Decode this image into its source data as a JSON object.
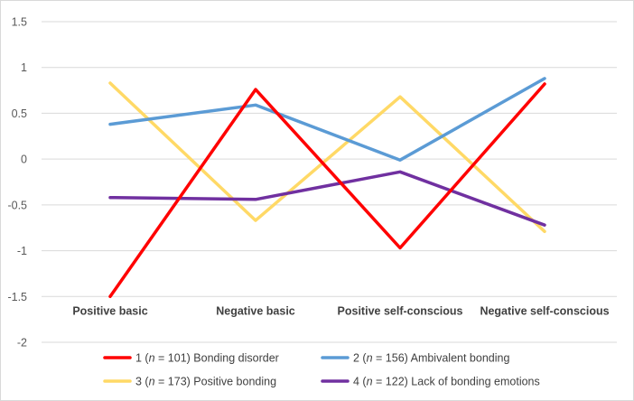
{
  "chart_data": {
    "type": "line",
    "title": "",
    "xlabel": "",
    "ylabel": "",
    "categories": [
      "Positive basic",
      "Negative basic",
      "Positive self-conscious",
      "Negative self-conscious"
    ],
    "ylim": [
      -2,
      1.5
    ],
    "yticks": [
      1.5,
      1,
      0.5,
      0,
      -0.5,
      -1,
      -1.5,
      -2
    ],
    "ytick_labels": [
      "1.5",
      "1",
      "0.5",
      "0",
      "-0.5",
      "-1",
      "-1.5",
      "-2"
    ],
    "grid": true,
    "legend_position": "bottom",
    "series": [
      {
        "id": "s1",
        "number": "1",
        "n_label": "n",
        "n_text": " = 101)",
        "name": "Bonding disorder",
        "color": "#ff0000",
        "values": [
          -1.5,
          0.76,
          -0.97,
          0.82
        ]
      },
      {
        "id": "s2",
        "number": "2",
        "n_label": "n",
        "n_text": " = 156)",
        "name": "Ambivalent bonding",
        "color": "#5b9bd5",
        "values": [
          0.38,
          0.59,
          -0.01,
          0.88
        ]
      },
      {
        "id": "s3",
        "number": "3",
        "n_label": "n",
        "n_text": " = 173)",
        "name": "Positive bonding",
        "color": "#ffd966",
        "values": [
          0.83,
          -0.67,
          0.68,
          -0.79
        ]
      },
      {
        "id": "s4",
        "number": "4",
        "n_label": "n",
        "n_text": " = 122)",
        "name": "Lack of bonding emotions",
        "color": "#7030a0",
        "values": [
          -0.42,
          -0.44,
          -0.14,
          -0.72
        ]
      }
    ]
  }
}
